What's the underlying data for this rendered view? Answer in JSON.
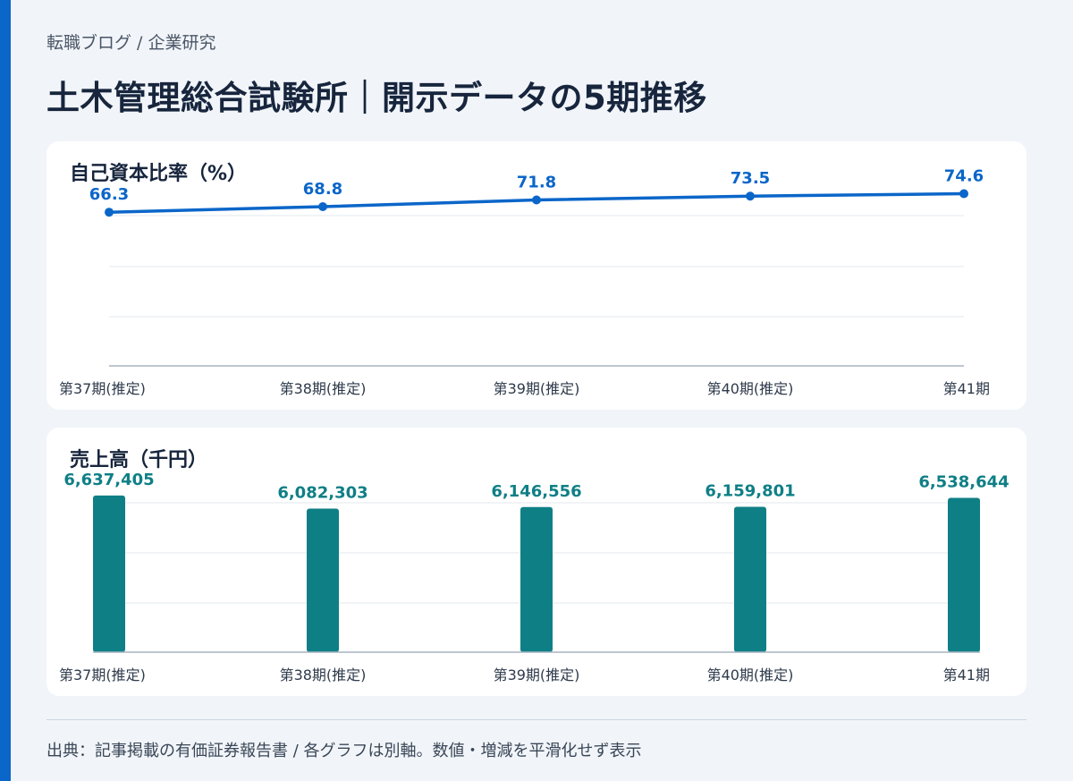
{
  "breadcrumb": "転職ブログ / 企業研究",
  "page_title": "土木管理総合試験所｜開示データの5期推移",
  "footnote": "出典：記事掲載の有価証券報告書 / 各グラフは別軸。数値・増減を平滑化せず表示",
  "colors": {
    "accent": "#0b66c9",
    "line": "#0b66c9",
    "bar": "#0f7f86",
    "grid": "#e3e8ee",
    "axis": "#a9b4c0"
  },
  "chart_data": [
    {
      "type": "line",
      "title": "自己資本比率（%）",
      "categories": [
        "第37期(推定)",
        "第38期(推定)",
        "第39期(推定)",
        "第40期(推定)",
        "第41期"
      ],
      "values": [
        66.3,
        68.8,
        71.8,
        73.5,
        74.6
      ],
      "labels": [
        "66.3",
        "68.8",
        "71.8",
        "73.5",
        "74.6"
      ],
      "ylim": [
        0,
        80
      ],
      "grid": true
    },
    {
      "type": "bar",
      "title": "売上高（千円）",
      "categories": [
        "第37期(推定)",
        "第38期(推定)",
        "第39期(推定)",
        "第40期(推定)",
        "第41期"
      ],
      "values": [
        6637405,
        6082303,
        6146556,
        6159801,
        6538644
      ],
      "labels": [
        "6,637,405",
        "6,082,303",
        "6,146,556",
        "6,159,801",
        "6,538,644"
      ],
      "ylim": [
        0,
        7200000
      ],
      "grid": true
    }
  ]
}
